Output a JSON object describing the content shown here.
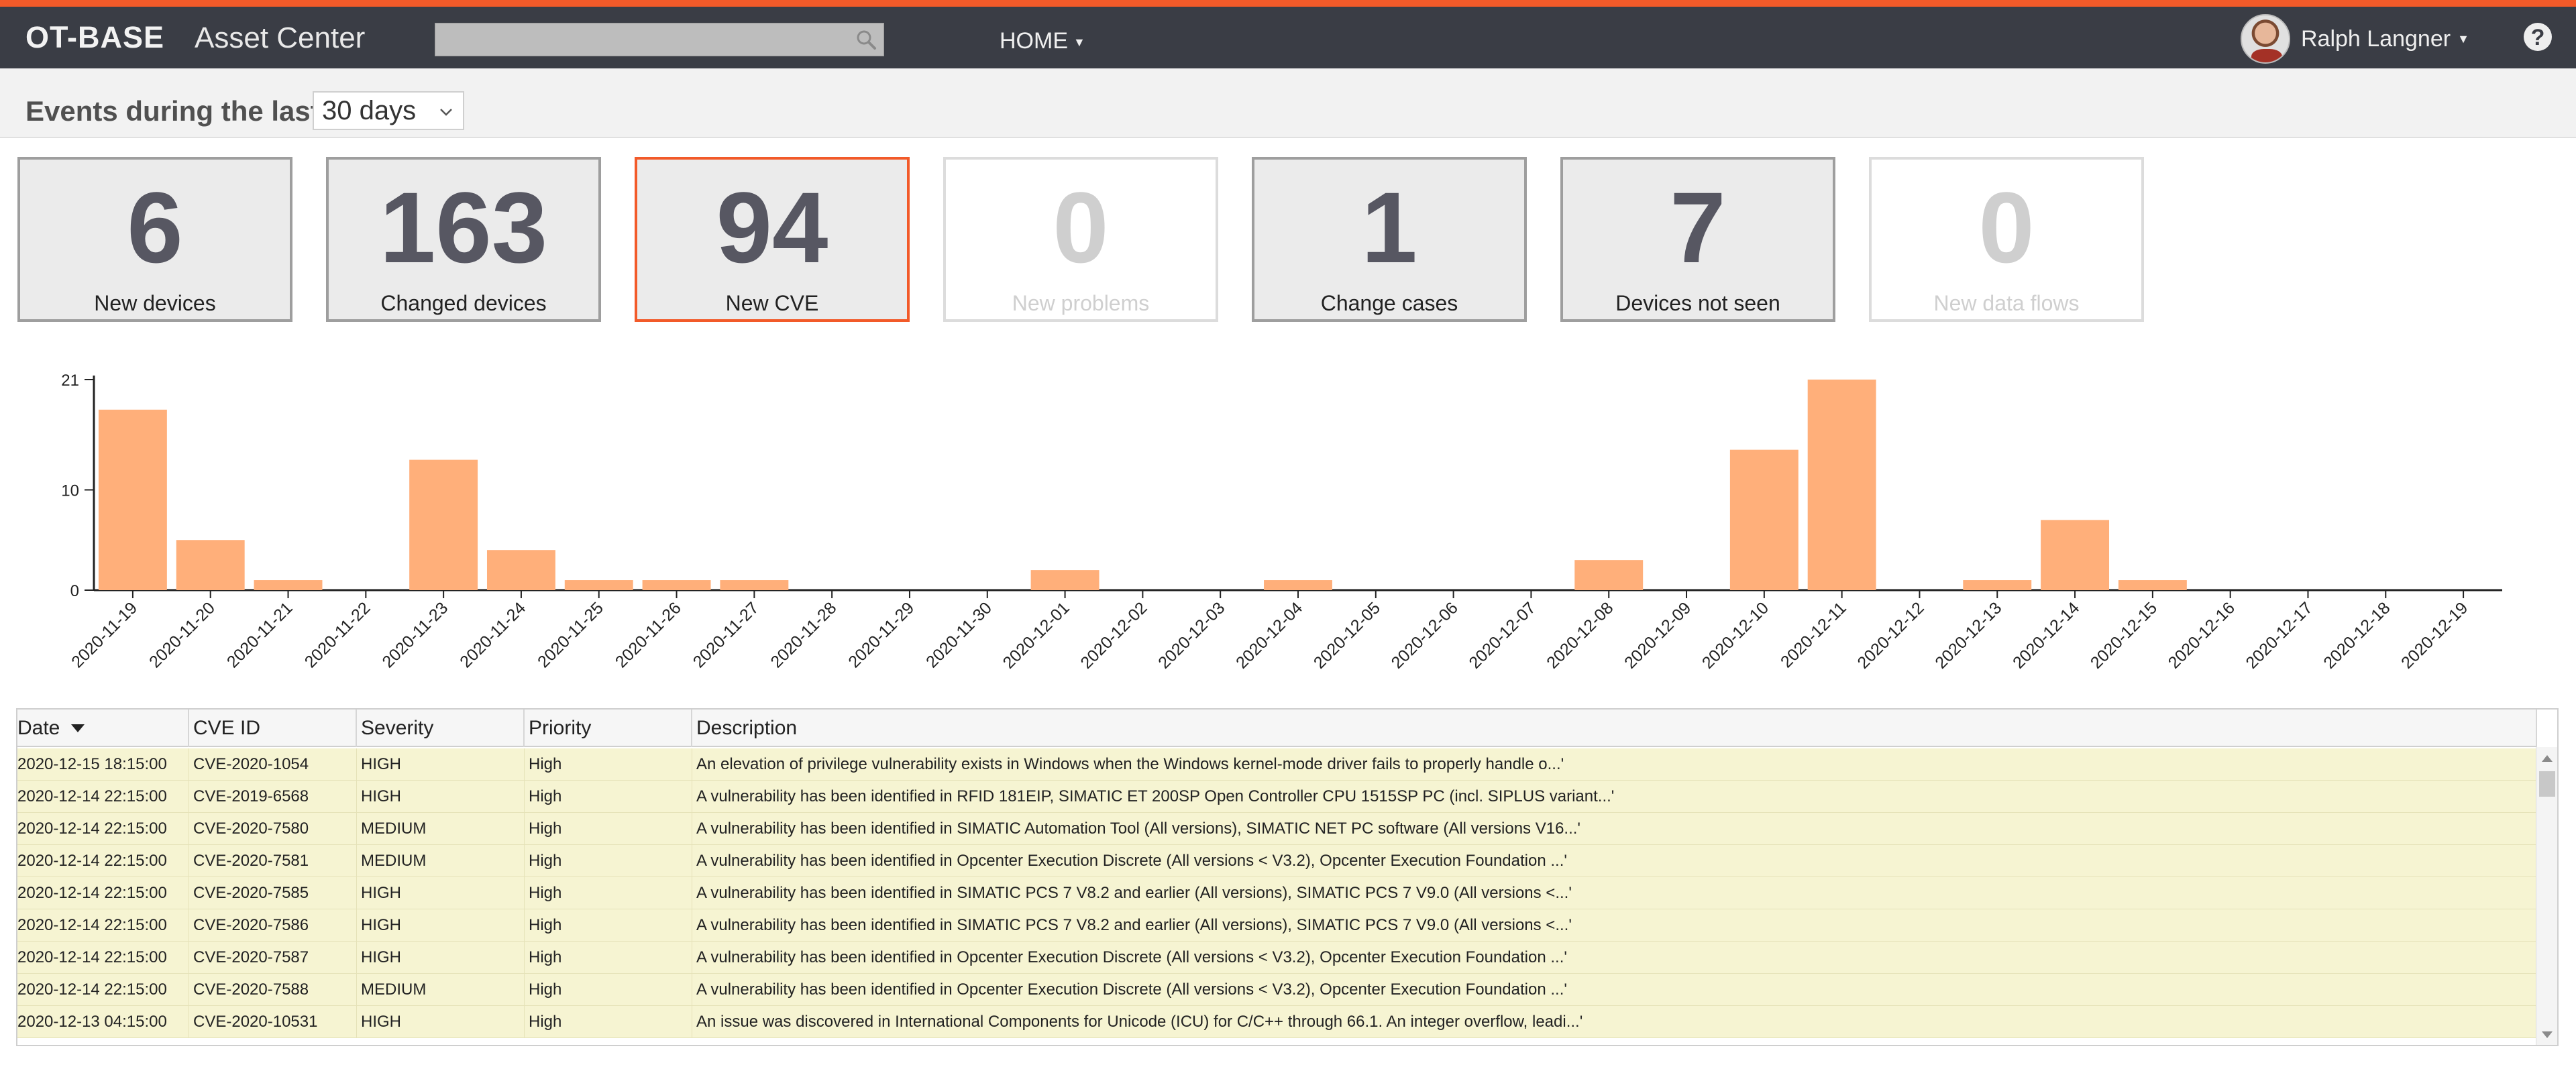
{
  "header": {
    "brand": "OT-BASE",
    "app_title": "Asset Center",
    "search_placeholder": "",
    "nav_home": "HOME",
    "user_name": "Ralph Langner",
    "help": "?",
    "accent_color": "#f25a29",
    "bar_color": "#3a3d45"
  },
  "period": {
    "label": "Events during the last",
    "selected": "30 days"
  },
  "tiles": [
    {
      "value": "6",
      "label": "New devices",
      "state": "normal"
    },
    {
      "value": "163",
      "label": "Changed devices",
      "state": "normal"
    },
    {
      "value": "94",
      "label": "New CVE",
      "state": "active"
    },
    {
      "value": "0",
      "label": "New problems",
      "state": "dim"
    },
    {
      "value": "1",
      "label": "Change cases",
      "state": "normal"
    },
    {
      "value": "7",
      "label": "Devices not seen",
      "state": "normal"
    },
    {
      "value": "0",
      "label": "New data flows",
      "state": "dim"
    }
  ],
  "chart_data": {
    "type": "bar",
    "title": "",
    "xlabel": "",
    "ylabel": "",
    "ylim": [
      0,
      21
    ],
    "yticks": [
      "0",
      "10",
      "21"
    ],
    "bar_color": "#ffaf7a",
    "grid": false,
    "categories": [
      "2020-11-19",
      "2020-11-20",
      "2020-11-21",
      "2020-11-22",
      "2020-11-23",
      "2020-11-24",
      "2020-11-25",
      "2020-11-26",
      "2020-11-27",
      "2020-11-28",
      "2020-11-29",
      "2020-11-30",
      "2020-12-01",
      "2020-12-02",
      "2020-12-03",
      "2020-12-04",
      "2020-12-05",
      "2020-12-06",
      "2020-12-07",
      "2020-12-08",
      "2020-12-09",
      "2020-12-10",
      "2020-12-11",
      "2020-12-12",
      "2020-12-13",
      "2020-12-14",
      "2020-12-15",
      "2020-12-16",
      "2020-12-17",
      "2020-12-18",
      "2020-12-19"
    ],
    "values": [
      18,
      5,
      1,
      0,
      13,
      4,
      1,
      1,
      1,
      0,
      0,
      0,
      2,
      0,
      0,
      1,
      0,
      0,
      0,
      3,
      0,
      14,
      21,
      0,
      1,
      7,
      1,
      0,
      0,
      0,
      0
    ]
  },
  "table": {
    "columns": [
      "Date",
      "CVE ID",
      "Severity",
      "Priority",
      "Description"
    ],
    "rows": [
      [
        "2020-12-15 18:15:00",
        "CVE-2020-1054",
        "HIGH",
        "High",
        "An elevation of privilege vulnerability exists in Windows when the Windows kernel-mode driver fails to properly handle o...'"
      ],
      [
        "2020-12-14 22:15:00",
        "CVE-2019-6568",
        "HIGH",
        "High",
        "A vulnerability has been identified in RFID 181EIP, SIMATIC ET 200SP Open Controller CPU 1515SP PC (incl. SIPLUS variant...'"
      ],
      [
        "2020-12-14 22:15:00",
        "CVE-2020-7580",
        "MEDIUM",
        "High",
        "A vulnerability has been identified in SIMATIC Automation Tool (All versions), SIMATIC NET PC software (All versions V16...'"
      ],
      [
        "2020-12-14 22:15:00",
        "CVE-2020-7581",
        "MEDIUM",
        "High",
        "A vulnerability has been identified in Opcenter Execution Discrete (All versions < V3.2), Opcenter Execution Foundation ...'"
      ],
      [
        "2020-12-14 22:15:00",
        "CVE-2020-7585",
        "HIGH",
        "High",
        "A vulnerability has been identified in SIMATIC PCS 7 V8.2 and earlier (All versions), SIMATIC PCS 7 V9.0 (All versions <...'"
      ],
      [
        "2020-12-14 22:15:00",
        "CVE-2020-7586",
        "HIGH",
        "High",
        "A vulnerability has been identified in SIMATIC PCS 7 V8.2 and earlier (All versions), SIMATIC PCS 7 V9.0 (All versions <...'"
      ],
      [
        "2020-12-14 22:15:00",
        "CVE-2020-7587",
        "HIGH",
        "High",
        "A vulnerability has been identified in Opcenter Execution Discrete (All versions < V3.2), Opcenter Execution Foundation ...'"
      ],
      [
        "2020-12-14 22:15:00",
        "CVE-2020-7588",
        "MEDIUM",
        "High",
        "A vulnerability has been identified in Opcenter Execution Discrete (All versions < V3.2), Opcenter Execution Foundation ...'"
      ],
      [
        "2020-12-13 04:15:00",
        "CVE-2020-10531",
        "HIGH",
        "High",
        "An issue was discovered in International Components for Unicode (ICU) for C/C++ through 66.1. An integer overflow, leadi...'"
      ]
    ]
  }
}
